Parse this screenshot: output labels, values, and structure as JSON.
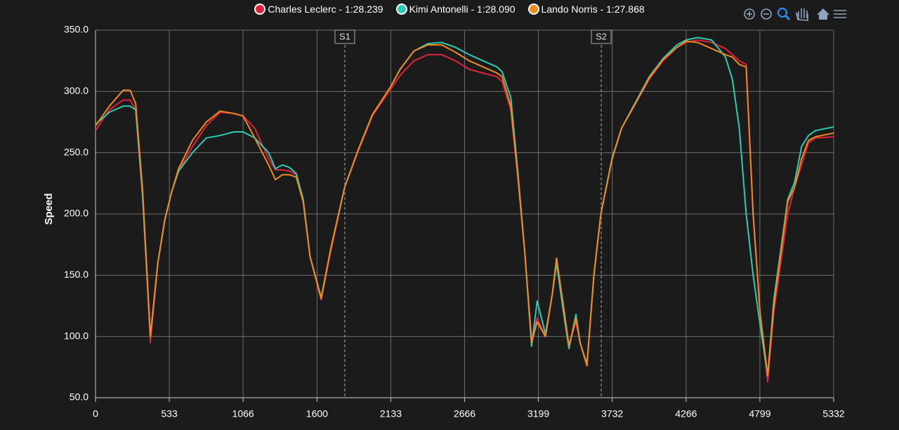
{
  "chart_data": {
    "type": "line",
    "y_label": "Speed",
    "x": [
      0,
      100,
      200,
      250,
      290,
      340,
      396,
      450,
      500,
      550,
      600,
      700,
      800,
      900,
      1000,
      1066,
      1150,
      1250,
      1300,
      1350,
      1400,
      1450,
      1500,
      1550,
      1630,
      1700,
      1800,
      1900,
      2000,
      2133,
      2200,
      2300,
      2400,
      2500,
      2600,
      2700,
      2800,
      2900,
      2937,
      3000,
      3050,
      3100,
      3150,
      3190,
      3250,
      3300,
      3330,
      3380,
      3420,
      3470,
      3500,
      3550,
      3600,
      3650,
      3732,
      3800,
      3900,
      4000,
      4100,
      4200,
      4266,
      4350,
      4450,
      4550,
      4600,
      4650,
      4700,
      4750,
      4800,
      4855,
      4900,
      5000,
      5050,
      5100,
      5150,
      5200,
      5332
    ],
    "series": [
      {
        "name": "Charles Leclerc - 1:28.239",
        "color": "#e0203c",
        "values": [
          268,
          285,
          293,
          293,
          285,
          215,
          95,
          160,
          195,
          218,
          235,
          255,
          272,
          283,
          282,
          280,
          270,
          245,
          236,
          236,
          235,
          232,
          210,
          165,
          130,
          170,
          222,
          252,
          280,
          302,
          313,
          325,
          330,
          330,
          325,
          318,
          315,
          312,
          308,
          285,
          230,
          170,
          97,
          115,
          100,
          135,
          163,
          125,
          93,
          112,
          95,
          78,
          150,
          200,
          245,
          270,
          290,
          310,
          325,
          336,
          340,
          342,
          340,
          335,
          330,
          325,
          322,
          200,
          120,
          63,
          120,
          200,
          222,
          240,
          258,
          262,
          263
        ]
      },
      {
        "name": "Kimi Antonelli - 1:28.090",
        "color": "#2ccbb4",
        "values": [
          273,
          283,
          288,
          288,
          285,
          215,
          100,
          160,
          195,
          218,
          235,
          250,
          262,
          264,
          267,
          267,
          262,
          250,
          237,
          240,
          238,
          233,
          212,
          165,
          132,
          172,
          222,
          253,
          281,
          304,
          318,
          333,
          339,
          340,
          336,
          330,
          325,
          320,
          316,
          295,
          235,
          170,
          92,
          129,
          102,
          135,
          160,
          120,
          90,
          118,
          95,
          77,
          150,
          200,
          246,
          270,
          291,
          312,
          327,
          338,
          342,
          344,
          342,
          328,
          310,
          270,
          200,
          150,
          110,
          68,
          130,
          212,
          226,
          255,
          264,
          268,
          271
        ]
      },
      {
        "name": "Lando Norris - 1:27.868",
        "color": "#ee8a1f",
        "values": [
          272,
          288,
          301,
          301,
          290,
          220,
          100,
          160,
          195,
          218,
          237,
          260,
          275,
          284,
          282,
          280,
          262,
          240,
          228,
          232,
          232,
          230,
          210,
          165,
          131,
          172,
          222,
          253,
          281,
          304,
          318,
          333,
          338,
          338,
          332,
          325,
          320,
          315,
          312,
          288,
          232,
          170,
          95,
          112,
          100,
          135,
          164,
          125,
          92,
          115,
          95,
          76,
          150,
          200,
          245,
          270,
          290,
          311,
          326,
          336,
          341,
          340,
          335,
          330,
          328,
          322,
          320,
          200,
          120,
          68,
          125,
          210,
          222,
          245,
          260,
          263,
          266
        ]
      }
    ],
    "xlim": [
      0,
      5332
    ],
    "xticks": [
      0,
      533,
      1066,
      1600,
      2133,
      2666,
      3199,
      3732,
      4266,
      4799,
      5332
    ],
    "ylim": [
      50,
      350
    ],
    "yticks": [
      {
        "value": 50,
        "label": "50.0"
      },
      {
        "value": 100,
        "label": "100.0"
      },
      {
        "value": 150,
        "label": "150.0"
      },
      {
        "value": 200,
        "label": "200.0"
      },
      {
        "value": 250,
        "label": "250.0"
      },
      {
        "value": 300,
        "label": "300.0"
      },
      {
        "value": 350,
        "label": "350.0"
      }
    ],
    "grid": true,
    "annotations": [
      {
        "label": "S1",
        "x": 1801
      },
      {
        "label": "S2",
        "x": 3653
      }
    ]
  }
}
